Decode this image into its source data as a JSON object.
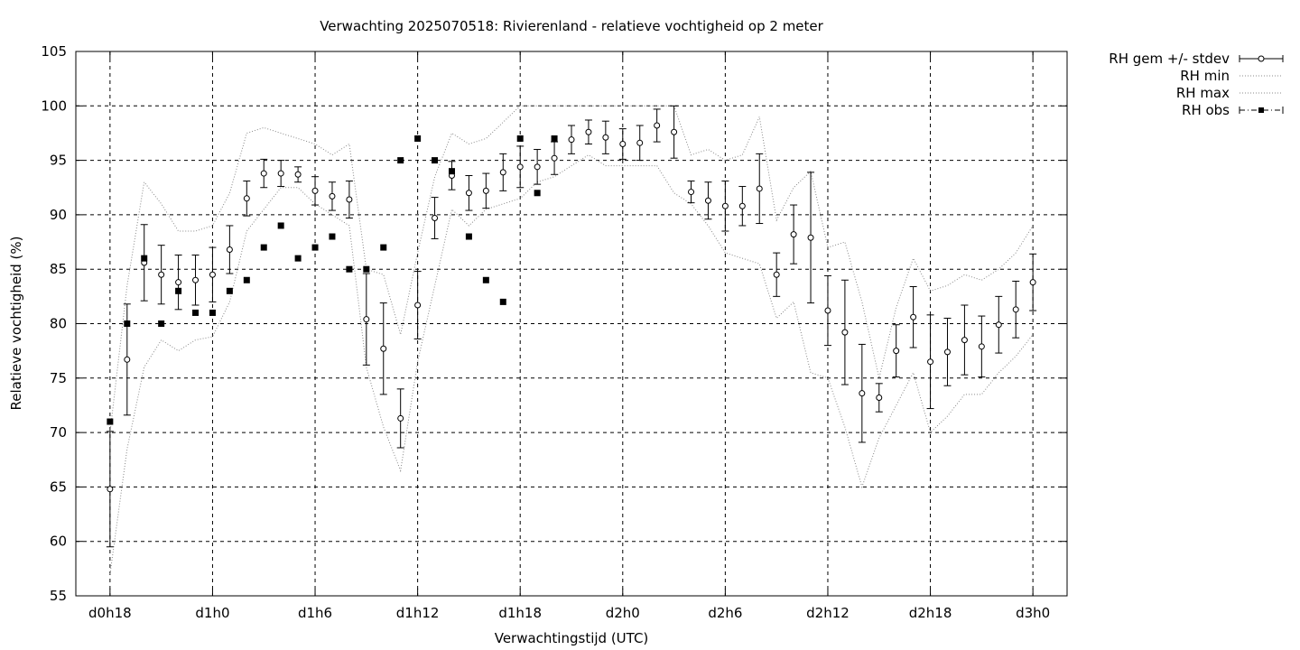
{
  "chart_data": {
    "type": "line",
    "title": "Verwachting 2025070518: Rivierenland - relatieve vochtigheid op 2 meter",
    "xlabel": "Verwachtingstijd (UTC)",
    "ylabel": "Relatieve vochtigheid (%)",
    "ylim": [
      55,
      105
    ],
    "yticks": [
      55,
      60,
      65,
      70,
      75,
      80,
      85,
      90,
      95,
      100,
      105
    ],
    "xlim": [
      16,
      74
    ],
    "xticks": [
      {
        "x": 18,
        "label": "d0h18"
      },
      {
        "x": 24,
        "label": "d1h0"
      },
      {
        "x": 30,
        "label": "d1h6"
      },
      {
        "x": 36,
        "label": "d1h12"
      },
      {
        "x": 42,
        "label": "d1h18"
      },
      {
        "x": 48,
        "label": "d2h0"
      },
      {
        "x": 54,
        "label": "d2h6"
      },
      {
        "x": 60,
        "label": "d2h12"
      },
      {
        "x": 66,
        "label": "d2h18"
      },
      {
        "x": 72,
        "label": "d3h0"
      }
    ],
    "grid": true,
    "legend_position": "outside-top-right",
    "series": [
      {
        "name": "RH gem +/- stdev",
        "style": "errorbars",
        "x": [
          18,
          19,
          20,
          21,
          22,
          23,
          24,
          25,
          26,
          27,
          28,
          29,
          30,
          31,
          32,
          33,
          34,
          35,
          36,
          37,
          38,
          39,
          40,
          41,
          42,
          43,
          44,
          45,
          46,
          47,
          48,
          49,
          50,
          51,
          52,
          53,
          54,
          55,
          56,
          57,
          58,
          59,
          60,
          61,
          62,
          63,
          64,
          65,
          66,
          67,
          68,
          69,
          70,
          71,
          72
        ],
        "mean": [
          64.8,
          76.7,
          85.6,
          84.5,
          83.8,
          84.0,
          84.5,
          86.8,
          91.5,
          93.8,
          93.8,
          93.7,
          92.2,
          91.7,
          91.4,
          80.4,
          77.7,
          71.3,
          81.7,
          89.7,
          93.6,
          92.0,
          92.2,
          93.9,
          94.4,
          94.4,
          95.2,
          96.9,
          97.6,
          97.1,
          96.5,
          96.6,
          98.2,
          97.6,
          92.1,
          91.3,
          90.8,
          90.8,
          92.4,
          84.5,
          88.2,
          87.9,
          81.2,
          79.2,
          73.6,
          73.2,
          77.5,
          80.6,
          76.5,
          77.4,
          78.5,
          77.9,
          79.9,
          81.3,
          83.8
        ],
        "sd": [
          5.3,
          5.1,
          3.5,
          2.7,
          2.5,
          2.3,
          2.5,
          2.2,
          1.6,
          1.3,
          1.2,
          0.7,
          1.3,
          1.3,
          1.7,
          4.2,
          4.2,
          2.7,
          3.1,
          1.9,
          1.3,
          1.6,
          1.6,
          1.7,
          1.9,
          1.6,
          1.5,
          1.3,
          1.1,
          1.5,
          1.4,
          1.6,
          1.5,
          2.4,
          1.0,
          1.7,
          2.3,
          1.8,
          3.2,
          2.0,
          2.7,
          6.0,
          3.2,
          4.8,
          4.5,
          1.3,
          2.4,
          2.8,
          4.3,
          3.1,
          3.2,
          2.8,
          2.6,
          2.6,
          2.6
        ]
      },
      {
        "name": "RH min",
        "style": "dotted",
        "x": [
          18,
          19,
          20,
          21,
          22,
          23,
          24,
          25,
          26,
          27,
          28,
          29,
          30,
          31,
          32,
          33,
          34,
          35,
          36,
          37,
          38,
          39,
          40,
          41,
          42,
          43,
          44,
          45,
          46,
          47,
          48,
          49,
          50,
          51,
          52,
          53,
          54,
          55,
          56,
          57,
          58,
          59,
          60,
          61,
          62,
          63,
          64,
          65,
          66,
          67,
          68,
          69,
          70,
          71,
          72
        ],
        "values": [
          57.0,
          68.5,
          76.0,
          78.5,
          77.5,
          78.5,
          78.8,
          82.0,
          88.5,
          90.5,
          92.5,
          92.5,
          91.0,
          90.0,
          89.0,
          76.0,
          70.5,
          66.5,
          76.5,
          83.5,
          90.5,
          89.0,
          90.5,
          91.0,
          91.5,
          93.0,
          93.5,
          94.5,
          95.5,
          94.5,
          94.5,
          94.5,
          94.5,
          92.0,
          91.0,
          89.0,
          86.5,
          86.0,
          85.5,
          80.5,
          82.0,
          75.5,
          75.0,
          70.5,
          65.0,
          69.5,
          72.5,
          75.5,
          70.0,
          71.5,
          73.5,
          73.5,
          75.5,
          77.0,
          79.0
        ]
      },
      {
        "name": "RH max",
        "style": "dotted",
        "x": [
          18,
          19,
          20,
          21,
          22,
          23,
          24,
          25,
          26,
          27,
          28,
          29,
          30,
          31,
          32,
          33,
          34,
          35,
          36,
          37,
          38,
          39,
          40,
          41,
          42,
          43,
          44,
          45,
          46,
          47,
          48,
          49,
          50,
          51,
          52,
          53,
          54,
          55,
          56,
          57,
          58,
          59,
          60,
          61,
          62,
          63,
          64,
          65,
          66,
          67,
          68,
          69,
          70,
          71,
          72
        ],
        "values": [
          70.0,
          83.5,
          93.0,
          91.0,
          88.5,
          88.5,
          89.0,
          92.0,
          97.5,
          98.0,
          97.5,
          97.0,
          96.5,
          95.5,
          96.5,
          85.0,
          84.5,
          79.0,
          86.5,
          93.5,
          97.5,
          96.5,
          97.0,
          98.5,
          100.0,
          100.0,
          100.0,
          100.0,
          100.0,
          100.0,
          100.0,
          100.0,
          100.0,
          100.0,
          95.5,
          96.0,
          95.0,
          95.5,
          99.0,
          89.5,
          92.5,
          94.0,
          87.0,
          87.5,
          82.0,
          75.0,
          81.5,
          86.0,
          83.0,
          83.5,
          84.5,
          84.0,
          85.0,
          86.5,
          89.0
        ]
      },
      {
        "name": "RH obs",
        "style": "points-dashdot",
        "x": [
          18,
          19,
          20,
          21,
          22,
          23,
          24,
          25,
          26,
          27,
          28,
          29,
          30,
          31,
          32,
          33,
          34,
          35,
          36,
          37,
          38,
          39,
          40,
          41,
          42,
          43,
          44
        ],
        "values": [
          71,
          80,
          86,
          80,
          83,
          81,
          81,
          83,
          84,
          87,
          89,
          86,
          87,
          88,
          85,
          85,
          87,
          95,
          97,
          95,
          94,
          88,
          84,
          82,
          97,
          92,
          97
        ]
      }
    ]
  }
}
